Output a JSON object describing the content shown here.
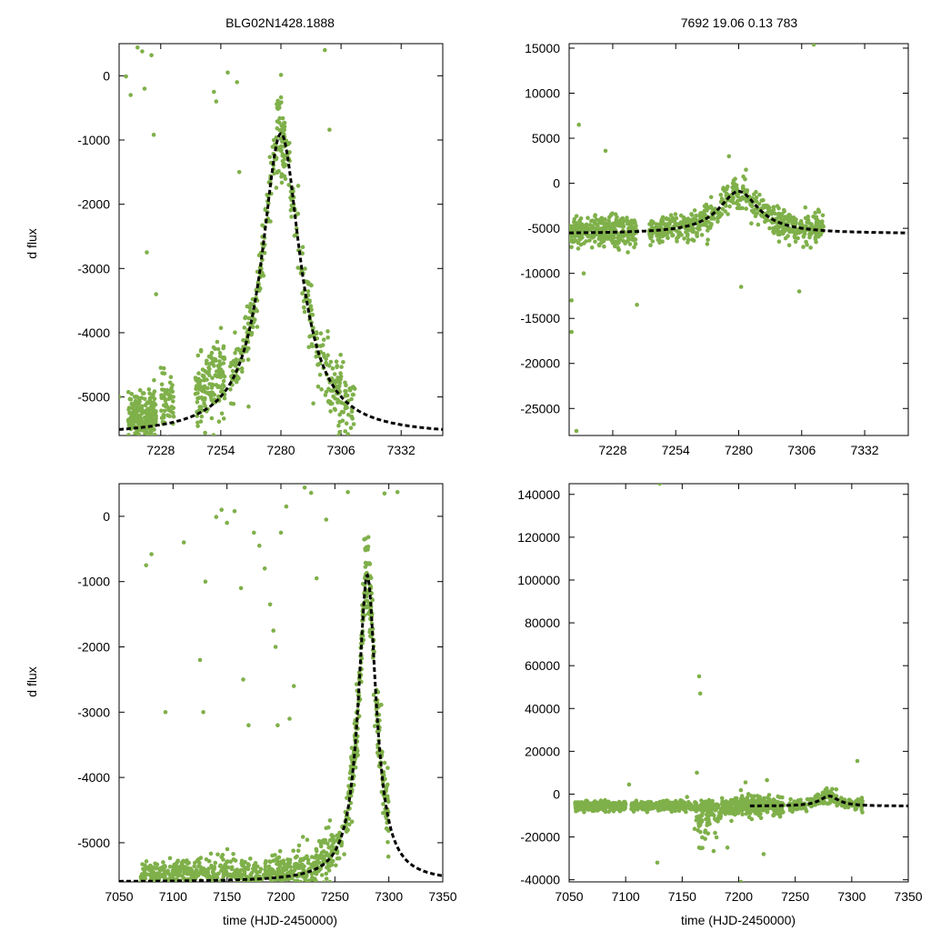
{
  "figure": {
    "title_left": "BLG02N1428.1888",
    "title_right": "7692  19.06  0.13  783",
    "xlabel": "time (HJD-2450000)",
    "ylabel": "d flux",
    "point_color": "#7fb04a",
    "model_color": "#000000"
  },
  "chart_data": [
    {
      "id": "tl",
      "type": "scatter",
      "title": "BLG02N1428.1888",
      "xlabel": "",
      "ylabel": "d flux",
      "xlim": [
        7210,
        7350
      ],
      "ylim": [
        -5600,
        500
      ],
      "xticks": [
        7228,
        7254,
        7280,
        7306,
        7332
      ],
      "yticks": [
        0,
        -1000,
        -2000,
        -3000,
        -4000,
        -5000
      ],
      "series": [
        {
          "name": "observations",
          "points": [
            [
              7210,
              -5000
            ],
            [
              7213,
              -10
            ],
            [
              7215,
              -300
            ],
            [
              7218,
              440
            ],
            [
              7220,
              380
            ],
            [
              7221,
              -200
            ],
            [
              7224,
              320
            ],
            [
              7225,
              -920
            ],
            [
              7222,
              -2750
            ],
            [
              7226,
              -3400
            ],
            [
              7251,
              -250
            ],
            [
              7252,
              -400
            ],
            [
              7257,
              50
            ],
            [
              7261,
              -100
            ],
            [
              7262,
              -1500
            ],
            [
              7266,
              -5150
            ],
            [
              7294,
              -5100
            ],
            [
              7299,
              400
            ],
            [
              7301,
              -840
            ]
          ]
        },
        {
          "name": "model",
          "style": "dashed",
          "x0": 7280,
          "peak": -900,
          "base": -5600,
          "tau": 10
        }
      ]
    },
    {
      "id": "tr",
      "type": "scatter",
      "title": "7692  19.06  0.13  783",
      "xlabel": "",
      "ylabel": "",
      "xlim": [
        7210,
        7350
      ],
      "ylim": [
        -28000,
        15500
      ],
      "xticks": [
        7228,
        7254,
        7280,
        7306,
        7332
      ],
      "yticks": [
        15000,
        10000,
        5000,
        0,
        -5000,
        -10000,
        -15000,
        -20000,
        -25000
      ],
      "series": [
        {
          "name": "observations",
          "points": [
            [
              7211,
              -16500
            ],
            [
              7211,
              -13000
            ],
            [
              7213,
              -27500
            ],
            [
              7214,
              6500
            ],
            [
              7216,
              -10000
            ],
            [
              7225,
              3600
            ],
            [
              7238,
              -13500
            ],
            [
              7276,
              3000
            ],
            [
              7281,
              -11500
            ],
            [
              7283,
              1500
            ],
            [
              7305,
              -12000
            ],
            [
              7311,
              15400
            ]
          ]
        },
        {
          "name": "model",
          "style": "dashed",
          "x0": 7280,
          "peak": -900,
          "base": -5600,
          "tau": 10
        }
      ]
    },
    {
      "id": "bl",
      "type": "scatter",
      "title": "",
      "xlabel": "time (HJD-2450000)",
      "ylabel": "d flux",
      "xlim": [
        7050,
        7350
      ],
      "ylim": [
        -5600,
        500
      ],
      "xticks": [
        7050,
        7100,
        7150,
        7200,
        7250,
        7300,
        7350
      ],
      "yticks": [
        0,
        -1000,
        -2000,
        -3000,
        -4000,
        -5000
      ],
      "series": [
        {
          "name": "observations",
          "points": [
            [
              7075,
              -750
            ],
            [
              7080,
              -580
            ],
            [
              7093,
              -3000
            ],
            [
              7110,
              -400
            ],
            [
              7125,
              -2200
            ],
            [
              7128,
              -3000
            ],
            [
              7130,
              -1000
            ],
            [
              7140,
              -10
            ],
            [
              7145,
              100
            ],
            [
              7150,
              -100
            ],
            [
              7157,
              80
            ],
            [
              7163,
              -1100
            ],
            [
              7165,
              -2500
            ],
            [
              7170,
              -3200
            ],
            [
              7175,
              -250
            ],
            [
              7180,
              -450
            ],
            [
              7185,
              -800
            ],
            [
              7190,
              -1350
            ],
            [
              7193,
              -1750
            ],
            [
              7195,
              -2000
            ],
            [
              7197,
              -3200
            ],
            [
              7200,
              -250
            ],
            [
              7205,
              150
            ],
            [
              7208,
              -3100
            ],
            [
              7212,
              -2600
            ],
            [
              7222,
              440
            ],
            [
              7228,
              360
            ],
            [
              7233,
              -950
            ],
            [
              7242,
              -50
            ],
            [
              7262,
              370
            ],
            [
              7296,
              350
            ],
            [
              7308,
              370
            ]
          ]
        },
        {
          "name": "model",
          "style": "dashed",
          "x0": 7280,
          "peak": -900,
          "base": -5600,
          "tau": 10
        }
      ]
    },
    {
      "id": "br",
      "type": "scatter",
      "title": "",
      "xlabel": "time (HJD-2450000)",
      "ylabel": "",
      "xlim": [
        7050,
        7350
      ],
      "ylim": [
        -41000,
        145000
      ],
      "xticks": [
        7050,
        7100,
        7150,
        7200,
        7250,
        7300,
        7350
      ],
      "yticks": [
        140000,
        120000,
        100000,
        80000,
        60000,
        40000,
        20000,
        0,
        -20000,
        -40000
      ],
      "series": [
        {
          "name": "observations",
          "points": [
            [
              7130,
              145000
            ],
            [
              7165,
              55000
            ],
            [
              7166,
              47000
            ],
            [
              7163,
              10000
            ],
            [
              7128,
              -32000
            ],
            [
              7165,
              -25000
            ],
            [
              7190,
              -25000
            ],
            [
              7202,
              -41000
            ],
            [
              7222,
              -28000
            ],
            [
              7305,
              15500
            ],
            [
              7103,
              4500
            ],
            [
              7206,
              5500
            ],
            [
              7225,
              6500
            ],
            [
              7210,
              -9000
            ],
            [
              7260,
              -8000
            ]
          ]
        },
        {
          "name": "model",
          "style": "dashed",
          "x0": 7280,
          "peak": -900,
          "base": -5600,
          "tau": 10,
          "x_from": 7210
        }
      ]
    }
  ]
}
